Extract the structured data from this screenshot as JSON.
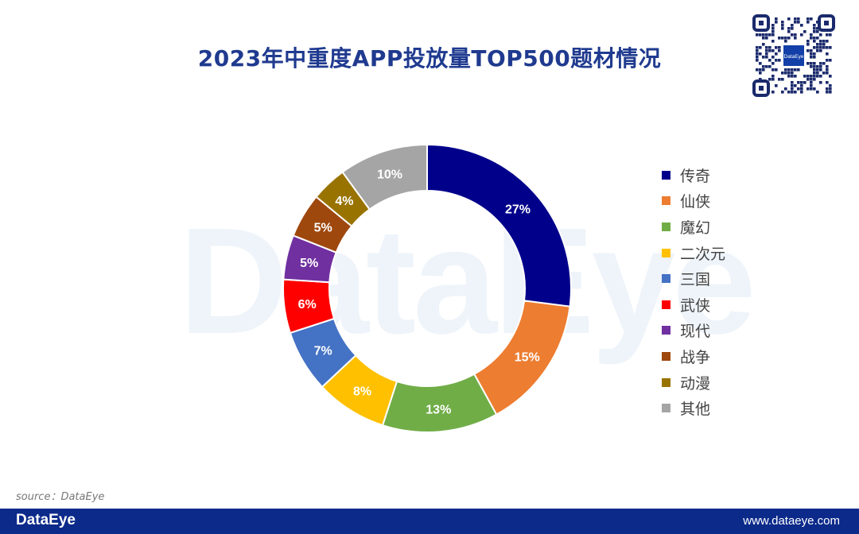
{
  "title": "2023年中重度APP投放量TOP500题材情况",
  "watermark": "DataEye",
  "qr_logo_text": "DataEye",
  "source": "source：DataEye",
  "footer": {
    "brand": "DataEye",
    "url": "www.dataeye.com"
  },
  "chart_data": {
    "type": "pie",
    "style": "donut",
    "legend_position": "right",
    "title": "2023年中重度APP投放量TOP500题材情况",
    "categories": [
      "传奇",
      "仙侠",
      "魔幻",
      "二次元",
      "三国",
      "武侠",
      "现代",
      "战争",
      "动漫",
      "其他"
    ],
    "values": [
      27,
      15,
      13,
      8,
      7,
      6,
      5,
      5,
      4,
      10
    ],
    "labels": [
      "27%",
      "15%",
      "13%",
      "8%",
      "7%",
      "6%",
      "5%",
      "5%",
      "4%",
      "10%"
    ],
    "colors": [
      "#00008b",
      "#ed7d31",
      "#70ad47",
      "#ffc000",
      "#4472c4",
      "#ff0000",
      "#7030a0",
      "#9e480e",
      "#997300",
      "#a5a5a5"
    ]
  }
}
